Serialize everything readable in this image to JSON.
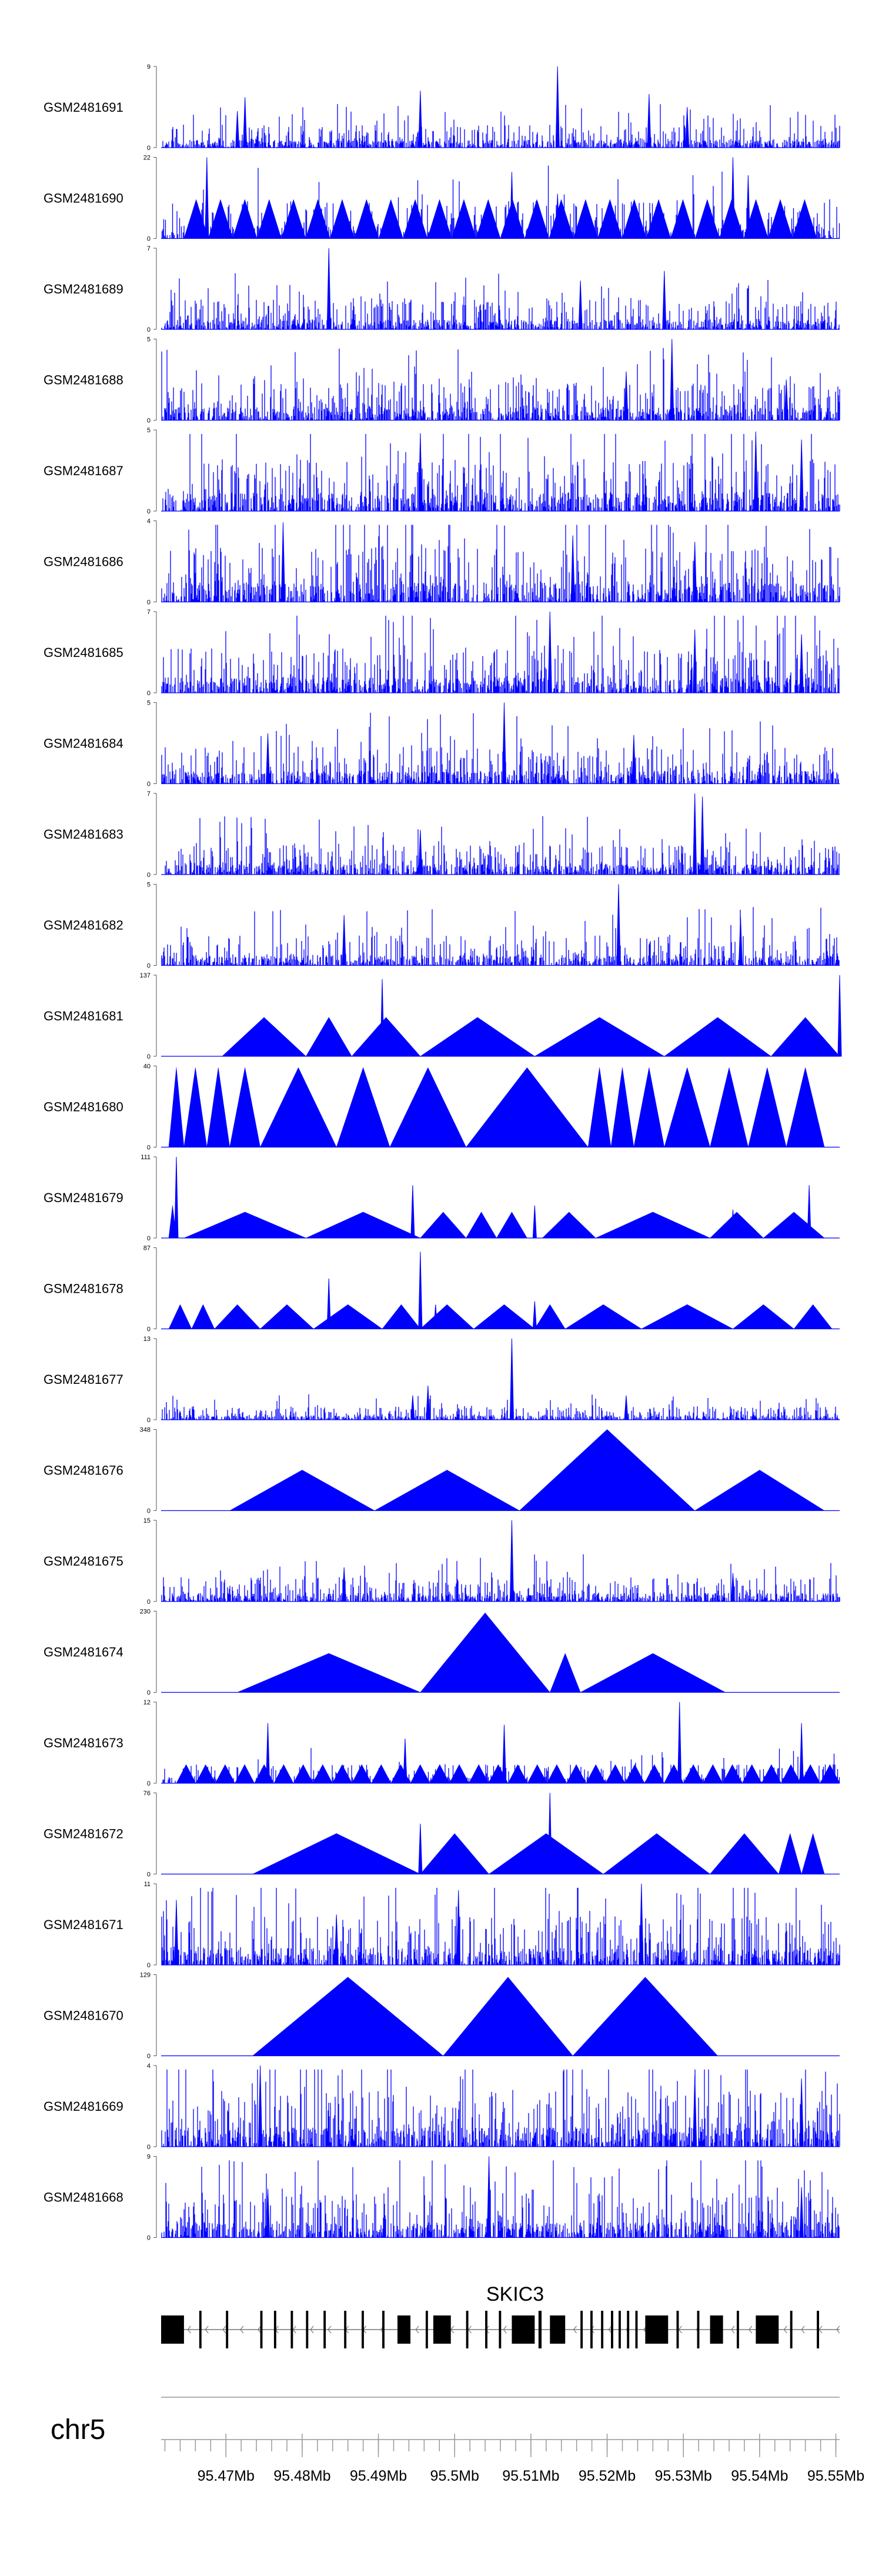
{
  "chart_data": {
    "type": "area",
    "title": "",
    "chromosome": "chr5",
    "color": "#0000ff",
    "x_range_mb": [
      95.4615,
      95.5505
    ],
    "x_ticks": [
      "95.47Mb",
      "95.48Mb",
      "95.49Mb",
      "95.5Mb",
      "95.51Mb",
      "95.52Mb",
      "95.53Mb",
      "95.54Mb",
      "95.55Mb"
    ],
    "x_tick_values": [
      95.47,
      95.48,
      95.49,
      95.5,
      95.51,
      95.52,
      95.53,
      95.54,
      95.55
    ],
    "tracks": [
      {
        "name": "GSM2481691",
        "ymax": 9,
        "ymax_label": "9",
        "style": "dense",
        "seed": 11,
        "base": 0.12,
        "peaks": [
          [
            95.4715,
            0.45
          ],
          [
            95.4725,
            0.62
          ],
          [
            95.4955,
            0.7
          ],
          [
            95.5135,
            1.0
          ],
          [
            95.5255,
            0.66
          ],
          [
            95.5305,
            0.5
          ]
        ]
      },
      {
        "name": "GSM2481690",
        "ymax": 22,
        "ymax_label": "22",
        "style": "hybrid",
        "seed": 23,
        "base": 0.2,
        "tri_start": 95.4645,
        "tri_end": 95.5475,
        "tri_count": 26,
        "tri_height": 0.48,
        "peaks": [
          [
            95.4675,
            1.0
          ],
          [
            95.5075,
            0.82
          ],
          [
            95.5135,
            0.55
          ],
          [
            95.5365,
            1.0
          ],
          [
            95.5385,
            0.78
          ]
        ]
      },
      {
        "name": "GSM2481689",
        "ymax": 7,
        "ymax_label": "7",
        "style": "dense",
        "seed": 37,
        "base": 0.16,
        "peaks": [
          [
            95.4835,
            1.0
          ],
          [
            95.5165,
            0.6
          ],
          [
            95.5275,
            0.72
          ]
        ]
      },
      {
        "name": "GSM2481688",
        "ymax": 5,
        "ymax_label": "5",
        "style": "dense",
        "seed": 41,
        "base": 0.2,
        "peaks": [
          [
            95.5285,
            1.0
          ],
          [
            95.5225,
            0.6
          ],
          [
            95.5435,
            0.5
          ]
        ]
      },
      {
        "name": "GSM2481687",
        "ymax": 5,
        "ymax_label": "5",
        "style": "dense",
        "seed": 53,
        "base": 0.28,
        "peaks": [
          [
            95.4955,
            0.96
          ],
          [
            95.5395,
            0.98
          ],
          [
            95.5455,
            0.88
          ]
        ]
      },
      {
        "name": "GSM2481686",
        "ymax": 4,
        "ymax_label": "4",
        "style": "dense",
        "seed": 67,
        "base": 0.3,
        "peaks": [
          [
            95.4775,
            0.98
          ],
          [
            95.5155,
            0.82
          ],
          [
            95.5315,
            0.74
          ]
        ]
      },
      {
        "name": "GSM2481685",
        "ymax": 7,
        "ymax_label": "7",
        "style": "dense",
        "seed": 71,
        "base": 0.24,
        "peaks": [
          [
            95.5125,
            1.0
          ],
          [
            95.5315,
            0.78
          ],
          [
            95.5455,
            0.72
          ]
        ]
      },
      {
        "name": "GSM2481684",
        "ymax": 5,
        "ymax_label": "5",
        "style": "dense",
        "seed": 83,
        "base": 0.2,
        "peaks": [
          [
            95.5065,
            1.0
          ],
          [
            95.4755,
            0.62
          ],
          [
            95.5235,
            0.6
          ]
        ]
      },
      {
        "name": "GSM2481683",
        "ymax": 7,
        "ymax_label": "7",
        "style": "dense",
        "seed": 97,
        "base": 0.16,
        "peaks": [
          [
            95.5315,
            1.0
          ],
          [
            95.5325,
            0.96
          ],
          [
            95.4955,
            0.55
          ]
        ]
      },
      {
        "name": "GSM2481682",
        "ymax": 5,
        "ymax_label": "5",
        "style": "dense",
        "seed": 101,
        "base": 0.16,
        "peaks": [
          [
            95.5215,
            1.0
          ],
          [
            95.4855,
            0.62
          ],
          [
            95.5375,
            0.6
          ]
        ]
      },
      {
        "name": "GSM2481681",
        "ymax": 137,
        "ymax_label": "137",
        "style": "tri",
        "triangles": [
          [
            95.4695,
            95.4805,
            0.48
          ],
          [
            95.4805,
            95.4865,
            0.48
          ],
          [
            95.4865,
            95.4955,
            0.48
          ],
          [
            95.4955,
            95.5105,
            0.48
          ],
          [
            95.5105,
            95.5275,
            0.48
          ],
          [
            95.5275,
            95.5415,
            0.48
          ],
          [
            95.5415,
            95.5505,
            0.48
          ]
        ],
        "peaks": [
          [
            95.4905,
            0.95
          ],
          [
            95.5505,
            1.0
          ]
        ]
      },
      {
        "name": "GSM2481680",
        "ymax": 40,
        "ymax_label": "40",
        "style": "tri",
        "triangles": [
          [
            95.4625,
            95.4645,
            0.98
          ],
          [
            95.4645,
            95.4675,
            0.98
          ],
          [
            95.4675,
            95.4705,
            0.98
          ],
          [
            95.4705,
            95.4745,
            0.98
          ],
          [
            95.4745,
            95.4845,
            0.98
          ],
          [
            95.4845,
            95.4915,
            0.98
          ],
          [
            95.4915,
            95.5015,
            0.98
          ],
          [
            95.5015,
            95.5175,
            0.98
          ],
          [
            95.5175,
            95.5205,
            0.98
          ],
          [
            95.5205,
            95.5235,
            0.98
          ],
          [
            95.5235,
            95.5275,
            0.98
          ],
          [
            95.5275,
            95.5335,
            0.98
          ],
          [
            95.5335,
            95.5385,
            0.98
          ],
          [
            95.5385,
            95.5435,
            0.98
          ],
          [
            95.5435,
            95.5485,
            0.98
          ]
        ],
        "peaks": []
      },
      {
        "name": "GSM2481679",
        "ymax": 111,
        "ymax_label": "111",
        "style": "tri",
        "triangles": [
          [
            95.4625,
            95.4635,
            0.4
          ],
          [
            95.4645,
            95.4805,
            0.32
          ],
          [
            95.4805,
            95.4955,
            0.32
          ],
          [
            95.4955,
            95.5015,
            0.32
          ],
          [
            95.5015,
            95.5055,
            0.32
          ],
          [
            95.5055,
            95.5095,
            0.32
          ],
          [
            95.5115,
            95.5185,
            0.32
          ],
          [
            95.5185,
            95.5335,
            0.32
          ],
          [
            95.5335,
            95.5405,
            0.32
          ],
          [
            95.5405,
            95.5485,
            0.32
          ]
        ],
        "peaks": [
          [
            95.4635,
            1.0
          ],
          [
            95.4945,
            0.65
          ],
          [
            95.5365,
            0.35
          ],
          [
            95.5465,
            0.65
          ],
          [
            95.5105,
            0.4
          ]
        ]
      },
      {
        "name": "GSM2481678",
        "ymax": 87,
        "ymax_label": "87",
        "style": "tri",
        "triangles": [
          [
            95.4625,
            95.4655,
            0.3
          ],
          [
            95.4655,
            95.4685,
            0.3
          ],
          [
            95.4685,
            95.4745,
            0.3
          ],
          [
            95.4745,
            95.4815,
            0.3
          ],
          [
            95.4815,
            95.4905,
            0.3
          ],
          [
            95.4905,
            95.4955,
            0.3
          ],
          [
            95.4955,
            95.5025,
            0.3
          ],
          [
            95.5025,
            95.5105,
            0.3
          ],
          [
            95.5105,
            95.5145,
            0.3
          ],
          [
            95.5145,
            95.5245,
            0.3
          ],
          [
            95.5245,
            95.5365,
            0.3
          ],
          [
            95.5365,
            95.5445,
            0.3
          ],
          [
            95.5445,
            95.5495,
            0.3
          ]
        ],
        "peaks": [
          [
            95.4835,
            0.62
          ],
          [
            95.4955,
            0.95
          ],
          [
            95.4975,
            0.3
          ],
          [
            95.5105,
            0.34
          ]
        ]
      },
      {
        "name": "GSM2481677",
        "ymax": 13,
        "ymax_label": "13",
        "style": "dense",
        "seed": 113,
        "base": 0.07,
        "peaks": [
          [
            95.5075,
            1.0
          ],
          [
            95.4965,
            0.42
          ],
          [
            95.4945,
            0.3
          ],
          [
            95.5225,
            0.3
          ]
        ]
      },
      {
        "name": "GSM2481676",
        "ymax": 348,
        "ymax_label": "348",
        "style": "tri",
        "triangles": [
          [
            95.4705,
            95.4895,
            0.5
          ],
          [
            95.4895,
            95.5085,
            0.5
          ],
          [
            95.5085,
            95.5315,
            1.0
          ],
          [
            95.5315,
            95.5485,
            0.5
          ]
        ],
        "peaks": []
      },
      {
        "name": "GSM2481675",
        "ymax": 15,
        "ymax_label": "15",
        "style": "dense",
        "seed": 127,
        "base": 0.13,
        "peaks": [
          [
            95.5075,
            1.0
          ],
          [
            95.4855,
            0.42
          ],
          [
            95.5365,
            0.35
          ]
        ]
      },
      {
        "name": "GSM2481674",
        "ymax": 230,
        "ymax_label": "230",
        "style": "tri",
        "triangles": [
          [
            95.4715,
            95.4955,
            0.48
          ],
          [
            95.4955,
            95.5125,
            0.98
          ],
          [
            95.5125,
            95.5165,
            0.48
          ],
          [
            95.5165,
            95.5355,
            0.48
          ]
        ],
        "peaks": []
      },
      {
        "name": "GSM2481673",
        "ymax": 12,
        "ymax_label": "12",
        "style": "hybrid",
        "seed": 131,
        "base": 0.1,
        "tri_start": 95.4635,
        "tri_end": 95.5505,
        "tri_count": 34,
        "tri_height": 0.23,
        "peaks": [
          [
            95.5295,
            1.0
          ],
          [
            95.4755,
            0.74
          ],
          [
            95.5065,
            0.72
          ],
          [
            95.5455,
            0.74
          ],
          [
            95.4935,
            0.55
          ]
        ]
      },
      {
        "name": "GSM2481672",
        "ymax": 76,
        "ymax_label": "76",
        "style": "tri",
        "triangles": [
          [
            95.4735,
            95.4955,
            0.5
          ],
          [
            95.4955,
            95.5045,
            0.5
          ],
          [
            95.5045,
            95.5195,
            0.5
          ],
          [
            95.5195,
            95.5335,
            0.5
          ],
          [
            95.5335,
            95.5425,
            0.5
          ],
          [
            95.5425,
            95.5455,
            0.5
          ],
          [
            95.5455,
            95.5485,
            0.5
          ]
        ],
        "peaks": [
          [
            95.5125,
            1.0
          ],
          [
            95.4955,
            0.62
          ]
        ]
      },
      {
        "name": "GSM2481671",
        "ymax": 11,
        "ymax_label": "11",
        "style": "dense",
        "seed": 139,
        "base": 0.26,
        "peaks": [
          [
            95.5245,
            1.0
          ],
          [
            95.5005,
            0.92
          ],
          [
            95.4635,
            0.8
          ],
          [
            95.4845,
            0.62
          ]
        ]
      },
      {
        "name": "GSM2481670",
        "ymax": 129,
        "ymax_label": "129",
        "style": "tri",
        "triangles": [
          [
            95.4735,
            95.4985,
            0.97
          ],
          [
            95.4985,
            95.5155,
            0.97
          ],
          [
            95.5155,
            95.5345,
            0.97
          ]
        ],
        "peaks": []
      },
      {
        "name": "GSM2481669",
        "ymax": 4,
        "ymax_label": "4",
        "style": "dense",
        "seed": 149,
        "base": 0.3,
        "peaks": [
          [
            95.4745,
            1.0
          ],
          [
            95.5315,
            0.88
          ],
          [
            95.5455,
            0.84
          ]
        ]
      },
      {
        "name": "GSM2481668",
        "ymax": 9,
        "ymax_label": "9",
        "style": "dense",
        "seed": 157,
        "base": 0.24,
        "peaks": [
          [
            95.5045,
            1.0
          ],
          [
            95.5455,
            0.62
          ],
          [
            95.4755,
            0.6
          ]
        ]
      }
    ],
    "gene": {
      "name": "SKIC3",
      "strand": "-",
      "start": 95.4615,
      "end": 95.5505,
      "exons": [
        [
          95.4615,
          95.4645
        ],
        [
          95.4665,
          95.4668
        ],
        [
          95.47,
          95.4703
        ],
        [
          95.4745,
          95.4748
        ],
        [
          95.4763,
          95.4766
        ],
        [
          95.4785,
          95.4788
        ],
        [
          95.4805,
          95.4808
        ],
        [
          95.4828,
          95.4831
        ],
        [
          95.4855,
          95.4858
        ],
        [
          95.4878,
          95.4881
        ],
        [
          95.4905,
          95.4908
        ],
        [
          95.4925,
          95.4942
        ],
        [
          95.4962,
          95.4965
        ],
        [
          95.4972,
          95.4995
        ],
        [
          95.5015,
          95.5018
        ],
        [
          95.504,
          95.5043
        ],
        [
          95.5058,
          95.5061
        ],
        [
          95.5075,
          95.5105
        ],
        [
          95.511,
          95.5114
        ],
        [
          95.5125,
          95.5145
        ],
        [
          95.5165,
          95.5168
        ],
        [
          95.5178,
          95.5181
        ],
        [
          95.5192,
          95.5195
        ],
        [
          95.5205,
          95.5208
        ],
        [
          95.5215,
          95.5218
        ],
        [
          95.5226,
          95.5229
        ],
        [
          95.5237,
          95.524
        ],
        [
          95.525,
          95.528
        ],
        [
          95.5291,
          95.5294
        ],
        [
          95.5318,
          95.5321
        ],
        [
          95.5335,
          95.5352
        ],
        [
          95.537,
          95.5373
        ],
        [
          95.5395,
          95.5425
        ],
        [
          95.544,
          95.5443
        ],
        [
          95.5475,
          95.5478
        ]
      ]
    },
    "ylabel": "",
    "xlabel": ""
  }
}
